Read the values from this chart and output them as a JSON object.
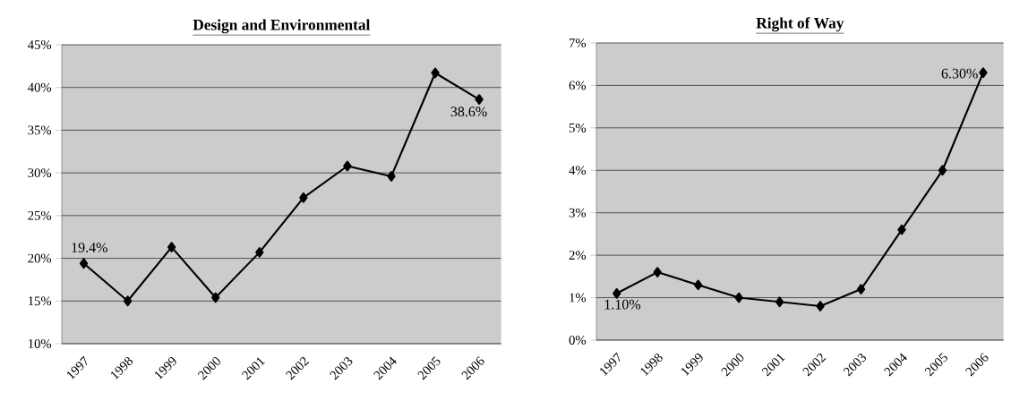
{
  "chart_data": [
    {
      "type": "line",
      "title": "Design and Environmental",
      "categories": [
        "1997",
        "1998",
        "1999",
        "2000",
        "2001",
        "2002",
        "2003",
        "2004",
        "2005",
        "2006"
      ],
      "series": [
        {
          "color": "#000000",
          "values": [
            19.4,
            15.0,
            21.3,
            15.4,
            20.7,
            27.1,
            30.8,
            29.6,
            41.7,
            38.6
          ],
          "value_labels": [
            "19.4%",
            null,
            null,
            null,
            null,
            null,
            null,
            null,
            null,
            "38.6%"
          ]
        }
      ],
      "ylim": [
        10,
        45
      ],
      "yticks": [
        {
          "value": 10,
          "label": "10%"
        },
        {
          "value": 15,
          "label": "15%"
        },
        {
          "value": 20,
          "label": "20%"
        },
        {
          "value": 25,
          "label": "25%"
        },
        {
          "value": 30,
          "label": "30%"
        },
        {
          "value": 35,
          "label": "35%"
        },
        {
          "value": 40,
          "label": "40%"
        },
        {
          "value": 45,
          "label": "45%"
        }
      ],
      "grid": "y",
      "marker": "diamond",
      "line_style": "solid"
    },
    {
      "type": "line",
      "title": "Right of Way",
      "categories": [
        "1997",
        "1998",
        "1999",
        "2000",
        "2001",
        "2002",
        "2003",
        "2004",
        "2005",
        "2006"
      ],
      "series": [
        {
          "color": "#000000",
          "values": [
            1.1,
            1.6,
            1.3,
            1.0,
            0.9,
            0.8,
            1.2,
            2.6,
            4.0,
            6.3
          ],
          "value_labels": [
            "1.10%",
            null,
            null,
            null,
            null,
            null,
            null,
            null,
            null,
            "6.30%"
          ]
        }
      ],
      "ylim": [
        0,
        7
      ],
      "yticks": [
        {
          "value": 0,
          "label": "0%"
        },
        {
          "value": 1,
          "label": "1%"
        },
        {
          "value": 2,
          "label": "2%"
        },
        {
          "value": 3,
          "label": "3%"
        },
        {
          "value": 4,
          "label": "4%"
        },
        {
          "value": 5,
          "label": "5%"
        },
        {
          "value": 6,
          "label": "6%"
        },
        {
          "value": 7,
          "label": "7%"
        }
      ],
      "grid": "y",
      "marker": "diamond",
      "line_style": "solid"
    }
  ]
}
